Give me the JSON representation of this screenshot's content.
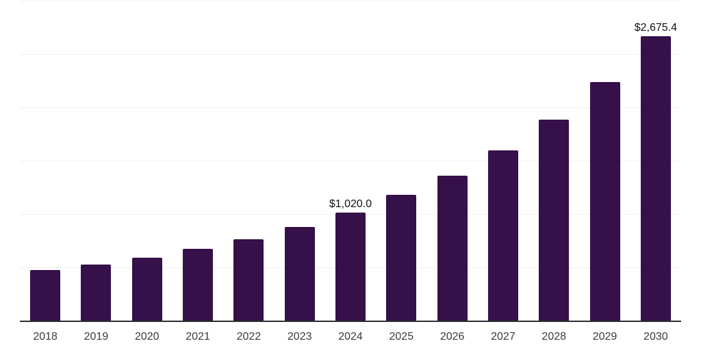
{
  "chart_data": {
    "type": "bar",
    "title": "",
    "xlabel": "",
    "ylabel": "",
    "categories": [
      "2018",
      "2019",
      "2020",
      "2021",
      "2022",
      "2023",
      "2024",
      "2025",
      "2026",
      "2027",
      "2028",
      "2029",
      "2030"
    ],
    "values": [
      480,
      531,
      595,
      680,
      772,
      882,
      1020.0,
      1183,
      1368,
      1605,
      1892,
      2244,
      2675.4
    ],
    "value_labels": [
      "",
      "",
      "",
      "",
      "",
      "",
      "$1,020.0",
      "",
      "",
      "",
      "",
      "",
      "$2,675.4"
    ],
    "ylim": [
      0,
      3000
    ],
    "gridline_step": 500,
    "grid": true,
    "legend_position": "none",
    "y_axis_tick_labels_visible": false
  },
  "colors": {
    "bar": "#351049",
    "gridline": "#f0f0f2",
    "axis_line": "#2e2e2e",
    "tick_label": "#3a3a3a",
    "value_label": "#111111",
    "background": "#ffffff"
  }
}
